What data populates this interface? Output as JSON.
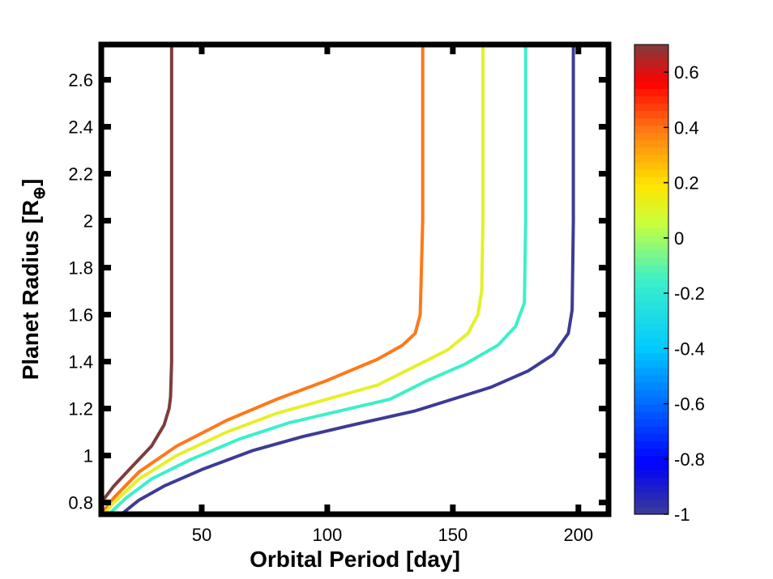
{
  "chart_data": {
    "type": "line",
    "title": "",
    "xlabel": "Orbital Period [day]",
    "ylabel": "Planet Radius [R",
    "ylabel_subscript": "⊕",
    "ylabel_close": "]",
    "xlim": [
      10,
      212
    ],
    "ylim": [
      0.75,
      2.75
    ],
    "x_ticks": [
      50,
      100,
      150,
      200
    ],
    "x_tick_labels": [
      "50",
      "100",
      "150",
      "200"
    ],
    "y_ticks": [
      0.8,
      1,
      1.2,
      1.4,
      1.6,
      1.8,
      2,
      2.2,
      2.4,
      2.6
    ],
    "y_tick_labels": [
      "0.8",
      "1",
      "1.2",
      "1.4",
      "1.6",
      "1.8",
      "2",
      "2.2",
      "2.4",
      "2.6"
    ],
    "grid": false,
    "colorbar": {
      "range": [
        -1,
        0.7
      ],
      "ticks": [
        -1,
        -0.8,
        -0.6,
        -0.4,
        -0.2,
        0,
        0.2,
        0.4,
        0.6
      ],
      "tick_labels": [
        "-1",
        "-0.8",
        "-0.6",
        "-0.4",
        "-0.2",
        "0",
        "0.2",
        "0.4",
        "0.6"
      ],
      "colormap": "jet"
    },
    "series": [
      {
        "name": "0.7",
        "color": "#7f3c3c",
        "x": [
          10,
          15,
          22,
          30,
          35,
          37,
          37.6,
          38,
          38,
          38
        ],
        "y": [
          0.8,
          0.87,
          0.95,
          1.04,
          1.13,
          1.2,
          1.25,
          1.4,
          2.0,
          2.75
        ]
      },
      {
        "name": "0.2",
        "color": "#ff7818",
        "x": [
          10,
          15,
          25,
          40,
          60,
          80,
          100,
          120,
          130,
          135,
          137,
          138,
          138
        ],
        "y": [
          0.75,
          0.82,
          0.93,
          1.04,
          1.15,
          1.24,
          1.32,
          1.41,
          1.47,
          1.52,
          1.6,
          2.0,
          2.75
        ]
      },
      {
        "name": "0",
        "color": "#e6f028",
        "x": [
          11,
          15,
          25,
          40,
          60,
          80,
          100,
          120,
          135,
          148,
          156,
          160,
          161.5,
          162,
          162
        ],
        "y": [
          0.75,
          0.8,
          0.9,
          1.0,
          1.1,
          1.18,
          1.24,
          1.3,
          1.38,
          1.45,
          1.52,
          1.6,
          1.7,
          2.0,
          2.75
        ]
      },
      {
        "name": "-0.4",
        "color": "#3cf0c8",
        "x": [
          13,
          20,
          30,
          45,
          65,
          85,
          105,
          125,
          140,
          155,
          168,
          175,
          178.5,
          179,
          179
        ],
        "y": [
          0.75,
          0.82,
          0.9,
          0.98,
          1.07,
          1.14,
          1.19,
          1.24,
          1.32,
          1.39,
          1.47,
          1.55,
          1.65,
          2.0,
          2.75
        ]
      },
      {
        "name": "-1",
        "color": "#3c3c96",
        "x": [
          18,
          25,
          35,
          50,
          70,
          90,
          110,
          135,
          150,
          165,
          180,
          190,
          196,
          197.5,
          198,
          198
        ],
        "y": [
          0.75,
          0.81,
          0.87,
          0.94,
          1.02,
          1.08,
          1.13,
          1.19,
          1.24,
          1.29,
          1.36,
          1.43,
          1.52,
          1.62,
          2.0,
          2.75
        ]
      }
    ]
  }
}
